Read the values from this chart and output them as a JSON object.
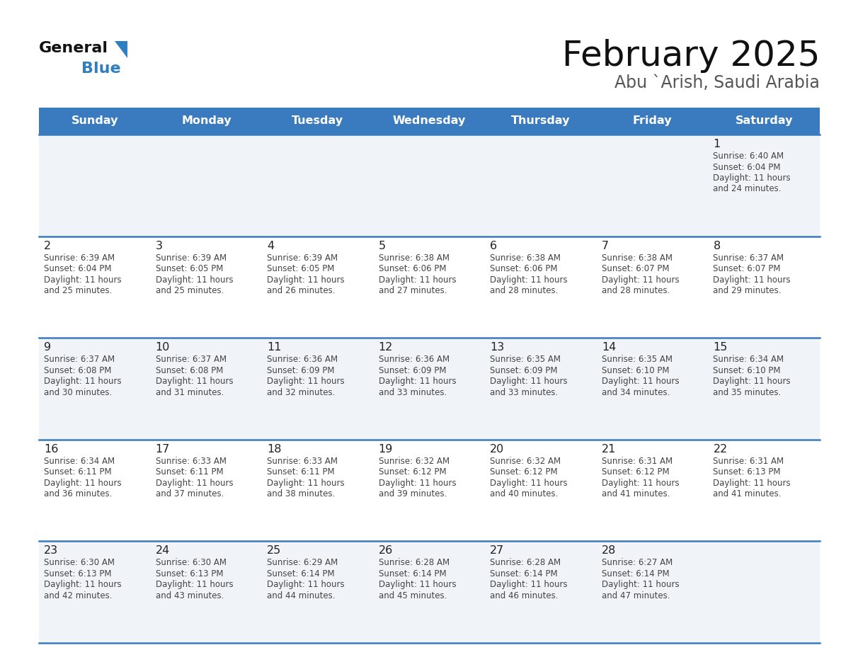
{
  "title": "February 2025",
  "subtitle": "Abu `Arish, Saudi Arabia",
  "header_bg": "#3a7bbf",
  "header_text_color": "#ffffff",
  "days_of_week": [
    "Sunday",
    "Monday",
    "Tuesday",
    "Wednesday",
    "Thursday",
    "Friday",
    "Saturday"
  ],
  "cell_bg_odd": "#f0f4f8",
  "cell_bg_even": "#ffffff",
  "divider_color": "#3a7bbf",
  "text_color": "#444444",
  "num_color": "#222222",
  "calendar": [
    [
      null,
      null,
      null,
      null,
      null,
      null,
      {
        "day": 1,
        "sunrise": "6:40 AM",
        "sunset": "6:04 PM",
        "daylight": "11 hours and 24 minutes."
      }
    ],
    [
      {
        "day": 2,
        "sunrise": "6:39 AM",
        "sunset": "6:04 PM",
        "daylight": "11 hours and 25 minutes."
      },
      {
        "day": 3,
        "sunrise": "6:39 AM",
        "sunset": "6:05 PM",
        "daylight": "11 hours and 25 minutes."
      },
      {
        "day": 4,
        "sunrise": "6:39 AM",
        "sunset": "6:05 PM",
        "daylight": "11 hours and 26 minutes."
      },
      {
        "day": 5,
        "sunrise": "6:38 AM",
        "sunset": "6:06 PM",
        "daylight": "11 hours and 27 minutes."
      },
      {
        "day": 6,
        "sunrise": "6:38 AM",
        "sunset": "6:06 PM",
        "daylight": "11 hours and 28 minutes."
      },
      {
        "day": 7,
        "sunrise": "6:38 AM",
        "sunset": "6:07 PM",
        "daylight": "11 hours and 28 minutes."
      },
      {
        "day": 8,
        "sunrise": "6:37 AM",
        "sunset": "6:07 PM",
        "daylight": "11 hours and 29 minutes."
      }
    ],
    [
      {
        "day": 9,
        "sunrise": "6:37 AM",
        "sunset": "6:08 PM",
        "daylight": "11 hours and 30 minutes."
      },
      {
        "day": 10,
        "sunrise": "6:37 AM",
        "sunset": "6:08 PM",
        "daylight": "11 hours and 31 minutes."
      },
      {
        "day": 11,
        "sunrise": "6:36 AM",
        "sunset": "6:09 PM",
        "daylight": "11 hours and 32 minutes."
      },
      {
        "day": 12,
        "sunrise": "6:36 AM",
        "sunset": "6:09 PM",
        "daylight": "11 hours and 33 minutes."
      },
      {
        "day": 13,
        "sunrise": "6:35 AM",
        "sunset": "6:09 PM",
        "daylight": "11 hours and 33 minutes."
      },
      {
        "day": 14,
        "sunrise": "6:35 AM",
        "sunset": "6:10 PM",
        "daylight": "11 hours and 34 minutes."
      },
      {
        "day": 15,
        "sunrise": "6:34 AM",
        "sunset": "6:10 PM",
        "daylight": "11 hours and 35 minutes."
      }
    ],
    [
      {
        "day": 16,
        "sunrise": "6:34 AM",
        "sunset": "6:11 PM",
        "daylight": "11 hours and 36 minutes."
      },
      {
        "day": 17,
        "sunrise": "6:33 AM",
        "sunset": "6:11 PM",
        "daylight": "11 hours and 37 minutes."
      },
      {
        "day": 18,
        "sunrise": "6:33 AM",
        "sunset": "6:11 PM",
        "daylight": "11 hours and 38 minutes."
      },
      {
        "day": 19,
        "sunrise": "6:32 AM",
        "sunset": "6:12 PM",
        "daylight": "11 hours and 39 minutes."
      },
      {
        "day": 20,
        "sunrise": "6:32 AM",
        "sunset": "6:12 PM",
        "daylight": "11 hours and 40 minutes."
      },
      {
        "day": 21,
        "sunrise": "6:31 AM",
        "sunset": "6:12 PM",
        "daylight": "11 hours and 41 minutes."
      },
      {
        "day": 22,
        "sunrise": "6:31 AM",
        "sunset": "6:13 PM",
        "daylight": "11 hours and 41 minutes."
      }
    ],
    [
      {
        "day": 23,
        "sunrise": "6:30 AM",
        "sunset": "6:13 PM",
        "daylight": "11 hours and 42 minutes."
      },
      {
        "day": 24,
        "sunrise": "6:30 AM",
        "sunset": "6:13 PM",
        "daylight": "11 hours and 43 minutes."
      },
      {
        "day": 25,
        "sunrise": "6:29 AM",
        "sunset": "6:14 PM",
        "daylight": "11 hours and 44 minutes."
      },
      {
        "day": 26,
        "sunrise": "6:28 AM",
        "sunset": "6:14 PM",
        "daylight": "11 hours and 45 minutes."
      },
      {
        "day": 27,
        "sunrise": "6:28 AM",
        "sunset": "6:14 PM",
        "daylight": "11 hours and 46 minutes."
      },
      {
        "day": 28,
        "sunrise": "6:27 AM",
        "sunset": "6:14 PM",
        "daylight": "11 hours and 47 minutes."
      },
      null
    ]
  ],
  "logo_general_color": "#111111",
  "logo_blue_color": "#2e7ec0",
  "figsize": [
    11.88,
    9.18
  ],
  "dpi": 100
}
